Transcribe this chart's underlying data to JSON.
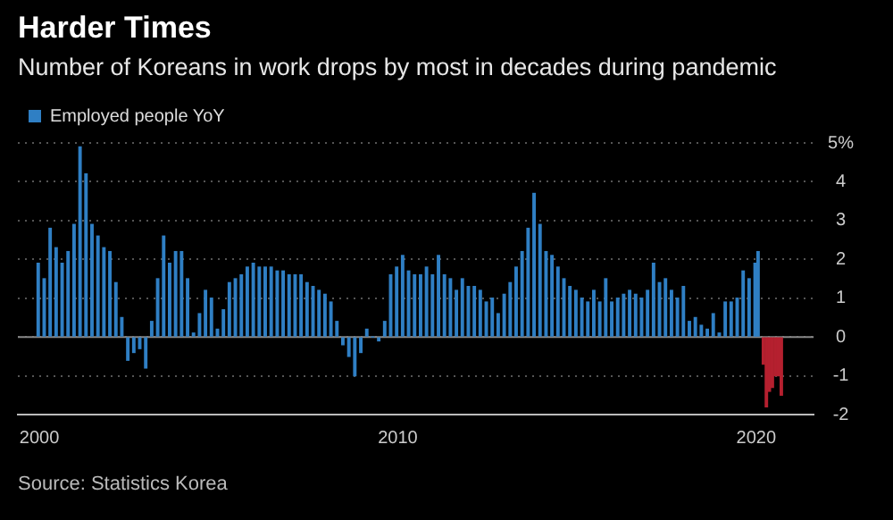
{
  "chart_data": {
    "type": "bar",
    "title": "Harder Times",
    "subtitle": "Number of Koreans in work drops by most in decades during pandemic",
    "annotations": [
      "Source: Statistics Korea"
    ],
    "xlim": [
      1999.4,
      2021.6
    ],
    "xticks": [
      2000,
      2010,
      2020
    ],
    "ylim": [
      -2,
      5
    ],
    "yticks": [
      -2,
      -1,
      0,
      1,
      2,
      3,
      4,
      {
        "value": 5,
        "label": "5%"
      }
    ],
    "grid": "y",
    "legend": "top left",
    "ref_lines": [
      {
        "axis": "y",
        "value": 0,
        "color": "#888888",
        "line_style": "solid"
      }
    ],
    "series": [
      {
        "name": "Employed people YoY",
        "color": "#2f7fc4",
        "x": [
          2000,
          2000.167,
          2000.333,
          2000.5,
          2000.667,
          2000.833,
          2001,
          2001.167,
          2001.333,
          2001.5,
          2001.667,
          2001.833,
          2002,
          2002.167,
          2002.333,
          2002.5,
          2002.667,
          2002.833,
          2003,
          2003.167,
          2003.333,
          2003.5,
          2003.667,
          2003.833,
          2004,
          2004.167,
          2004.333,
          2004.5,
          2004.667,
          2004.833,
          2005,
          2005.167,
          2005.333,
          2005.5,
          2005.667,
          2005.833,
          2006,
          2006.167,
          2006.333,
          2006.5,
          2006.667,
          2006.833,
          2007,
          2007.167,
          2007.333,
          2007.5,
          2007.667,
          2007.833,
          2008,
          2008.167,
          2008.333,
          2008.5,
          2008.667,
          2008.833,
          2009,
          2009.167,
          2009.333,
          2009.5,
          2009.667,
          2009.833,
          2010,
          2010.167,
          2010.333,
          2010.5,
          2010.667,
          2010.833,
          2011,
          2011.167,
          2011.333,
          2011.5,
          2011.667,
          2011.833,
          2012,
          2012.167,
          2012.333,
          2012.5,
          2012.667,
          2012.833,
          2013,
          2013.167,
          2013.333,
          2013.5,
          2013.667,
          2013.833,
          2014,
          2014.167,
          2014.333,
          2014.5,
          2014.667,
          2014.833,
          2015,
          2015.167,
          2015.333,
          2015.5,
          2015.667,
          2015.833,
          2016,
          2016.167,
          2016.333,
          2016.5,
          2016.667,
          2016.833,
          2017,
          2017.167,
          2017.333,
          2017.5,
          2017.667,
          2017.833,
          2018,
          2018.167,
          2018.333,
          2018.5,
          2018.667,
          2018.833,
          2019,
          2019.167,
          2019.333,
          2019.5,
          2019.667,
          2019.833,
          2020,
          2020.083
        ],
        "values": [
          1.9,
          1.5,
          2.8,
          2.3,
          1.9,
          2.2,
          2.9,
          4.9,
          4.2,
          2.9,
          2.6,
          2.3,
          2.2,
          1.4,
          0.5,
          -0.6,
          -0.4,
          -0.3,
          -0.8,
          0.4,
          1.5,
          2.6,
          1.9,
          2.2,
          2.2,
          1.5,
          0.1,
          0.6,
          1.2,
          1.0,
          0.2,
          0.7,
          1.4,
          1.5,
          1.6,
          1.8,
          1.9,
          1.8,
          1.8,
          1.8,
          1.7,
          1.7,
          1.6,
          1.6,
          1.6,
          1.4,
          1.3,
          1.2,
          1.1,
          0.9,
          0.4,
          -0.2,
          -0.5,
          -1.0,
          -0.4,
          0.2,
          0,
          -0.1,
          0.4,
          1.6,
          1.8,
          2.1,
          1.7,
          1.6,
          1.6,
          1.8,
          1.6,
          2.1,
          1.6,
          1.5,
          1.2,
          1.5,
          1.3,
          1.3,
          1.2,
          0.9,
          1.0,
          0.6,
          1.1,
          1.4,
          1.8,
          2.2,
          2.8,
          3.7,
          2.9,
          2.2,
          2.1,
          1.8,
          1.5,
          1.3,
          1.2,
          1.0,
          0.9,
          1.2,
          0.9,
          1.5,
          0.9,
          1.0,
          1.1,
          1.2,
          1.1,
          1.0,
          1.2,
          1.9,
          1.4,
          1.5,
          1.2,
          1.0,
          1.3,
          0.4,
          0.5,
          0.3,
          0.2,
          0.6,
          0.1,
          0.9,
          0.9,
          1.0,
          1.7,
          1.5,
          1.9,
          2.2
        ]
      },
      {
        "color": "#b5202f",
        "x": [
          2020.167,
          2020.25,
          2020.333,
          2020.417,
          2020.5,
          2020.583,
          2020.667
        ],
        "values": [
          -0.7,
          -1.8,
          -1.4,
          -1.3,
          -1.0,
          -1.0,
          -1.5
        ]
      }
    ]
  }
}
